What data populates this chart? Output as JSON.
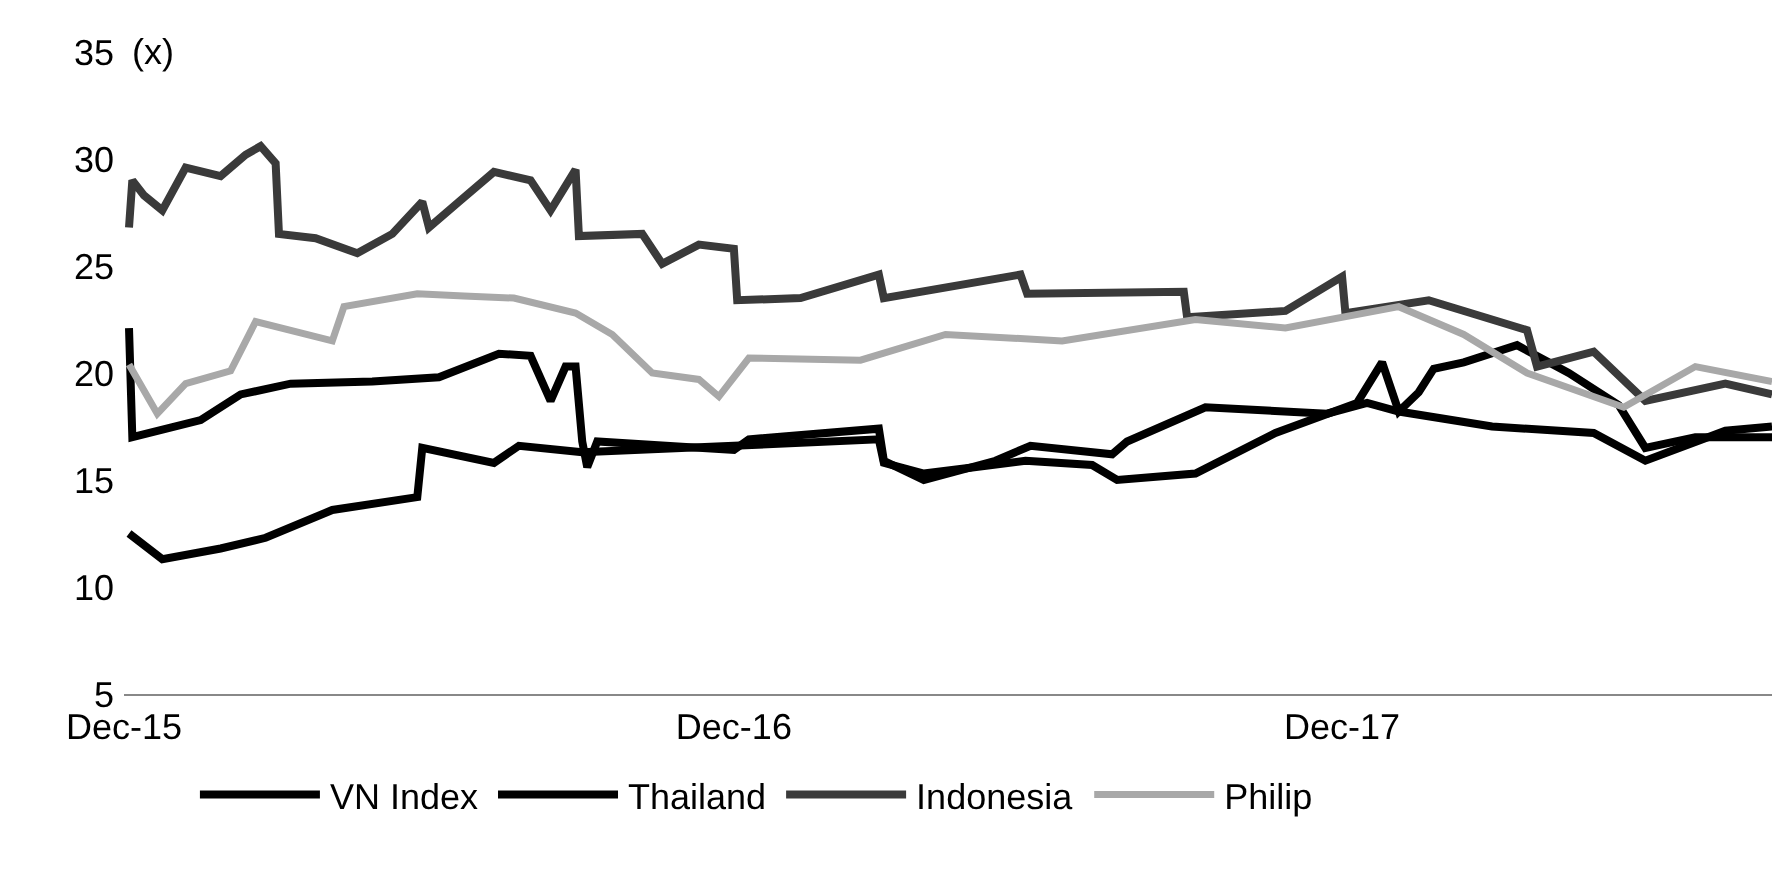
{
  "chart_data": {
    "type": "line",
    "ylabel": "(x)",
    "xlim": [
      "2015-12-01",
      "2018-08-16"
    ],
    "xticks": [
      {
        "value": "2015-12-01",
        "label": "Dec-15"
      },
      {
        "value": "2016-12-01",
        "label": "Dec-16"
      },
      {
        "value": "2017-12-01",
        "label": "Dec-17"
      }
    ],
    "ylim": [
      5,
      35
    ],
    "yticks": [
      5,
      10,
      15,
      20,
      25,
      30,
      35
    ],
    "legend": "bottom",
    "marker": "none",
    "line_style": "solid",
    "series": [
      {
        "name": "VN Index",
        "color": "#000000",
        "x": [
          "2015-12-04",
          "2015-12-24",
          "2016-01-28",
          "2016-02-24",
          "2016-04-04",
          "2016-05-25",
          "2016-05-28",
          "2016-07-10",
          "2016-07-25",
          "2016-09-01",
          "2016-12-01",
          "2017-02-26",
          "2017-03-01",
          "2017-03-25",
          "2017-05-25",
          "2017-07-04",
          "2017-07-19",
          "2017-09-04",
          "2017-10-22",
          "2017-12-10",
          "2017-12-25",
          "2018-01-04",
          "2018-01-16",
          "2018-01-25",
          "2018-02-12",
          "2018-03-16",
          "2018-04-16",
          "2018-05-16",
          "2018-06-01",
          "2018-07-01",
          "2018-08-16"
        ],
        "values": [
          12.5,
          11.3,
          11.8,
          12.3,
          13.6,
          14.2,
          16.5,
          15.8,
          16.6,
          16.3,
          16.6,
          16.9,
          15.8,
          15.3,
          15.9,
          15.7,
          15.0,
          15.3,
          17.2,
          18.6,
          20.5,
          18.2,
          19.1,
          20.2,
          20.5,
          21.3,
          20.0,
          18.5,
          16.5,
          17.0,
          17.0
        ]
      },
      {
        "name": "Thailand",
        "color": "#000000",
        "x": [
          "2015-12-04",
          "2015-12-06",
          "2016-01-16",
          "2016-02-09",
          "2016-03-10",
          "2016-04-28",
          "2016-06-07",
          "2016-07-13",
          "2016-08-01",
          "2016-08-13",
          "2016-08-22",
          "2016-08-28",
          "2016-09-01",
          "2016-09-04",
          "2016-09-10",
          "2016-12-01",
          "2016-12-10",
          "2017-02-26",
          "2017-03-01",
          "2017-03-25",
          "2017-05-07",
          "2017-05-28",
          "2017-07-16",
          "2017-07-25",
          "2017-09-10",
          "2017-11-22",
          "2017-12-16",
          "2018-01-04",
          "2018-03-01",
          "2018-05-01",
          "2018-06-01",
          "2018-07-19",
          "2018-08-16"
        ],
        "values": [
          22.1,
          17.0,
          17.8,
          19.0,
          19.5,
          19.6,
          19.8,
          20.9,
          20.8,
          18.7,
          20.3,
          20.3,
          16.8,
          15.6,
          16.8,
          16.4,
          16.9,
          17.4,
          15.9,
          15.0,
          15.9,
          16.6,
          16.2,
          16.8,
          18.4,
          18.1,
          18.6,
          18.2,
          17.5,
          17.2,
          15.9,
          17.3,
          17.5
        ]
      },
      {
        "name": "Indonesia",
        "color": "#3a3a3a",
        "x": [
          "2015-12-04",
          "2015-12-06",
          "2015-12-13",
          "2015-12-24",
          "2016-01-07",
          "2016-01-28",
          "2016-02-12",
          "2016-02-21",
          "2016-03-01",
          "2016-03-03",
          "2016-03-25",
          "2016-04-19",
          "2016-05-10",
          "2016-05-28",
          "2016-06-01",
          "2016-06-19",
          "2016-07-10",
          "2016-08-01",
          "2016-08-13",
          "2016-08-28",
          "2016-08-30",
          "2016-10-07",
          "2016-10-19",
          "2016-11-10",
          "2016-12-01",
          "2016-12-03",
          "2017-01-10",
          "2017-02-26",
          "2017-03-01",
          "2017-05-22",
          "2017-05-26",
          "2017-08-28",
          "2017-08-30",
          "2017-10-28",
          "2017-12-01",
          "2017-12-03",
          "2018-01-22",
          "2018-03-22",
          "2018-03-28",
          "2018-05-01",
          "2018-06-01",
          "2018-07-19",
          "2018-08-16"
        ],
        "values": [
          26.8,
          29.0,
          28.3,
          27.6,
          29.6,
          29.2,
          30.2,
          30.6,
          29.8,
          26.5,
          26.3,
          25.6,
          26.5,
          28.0,
          26.8,
          28.0,
          29.4,
          29.0,
          27.6,
          29.5,
          26.4,
          26.5,
          25.1,
          26.0,
          25.8,
          23.4,
          23.5,
          24.6,
          23.5,
          24.6,
          23.7,
          23.8,
          22.6,
          22.9,
          24.5,
          22.8,
          23.4,
          22.0,
          20.3,
          21.0,
          18.7,
          19.5,
          19.0
        ]
      },
      {
        "name": "Philip",
        "color": "#a8a8a8",
        "x": [
          "2015-12-04",
          "2015-12-21",
          "2016-01-07",
          "2016-02-03",
          "2016-02-18",
          "2016-04-04",
          "2016-04-11",
          "2016-05-25",
          "2016-06-22",
          "2016-07-22",
          "2016-08-28",
          "2016-09-19",
          "2016-10-13",
          "2016-11-10",
          "2016-11-22",
          "2016-12-10",
          "2017-02-15",
          "2017-04-07",
          "2017-06-16",
          "2017-09-04",
          "2017-10-28",
          "2018-01-04",
          "2018-02-12",
          "2018-03-22",
          "2018-05-19",
          "2018-07-01",
          "2018-08-16"
        ],
        "values": [
          20.4,
          18.1,
          19.5,
          20.1,
          22.4,
          21.5,
          23.1,
          23.7,
          23.6,
          23.5,
          22.8,
          21.8,
          20.0,
          19.7,
          18.9,
          20.7,
          20.6,
          21.8,
          21.5,
          22.5,
          22.1,
          23.1,
          21.8,
          20.0,
          18.4,
          20.3,
          19.6
        ]
      }
    ]
  }
}
